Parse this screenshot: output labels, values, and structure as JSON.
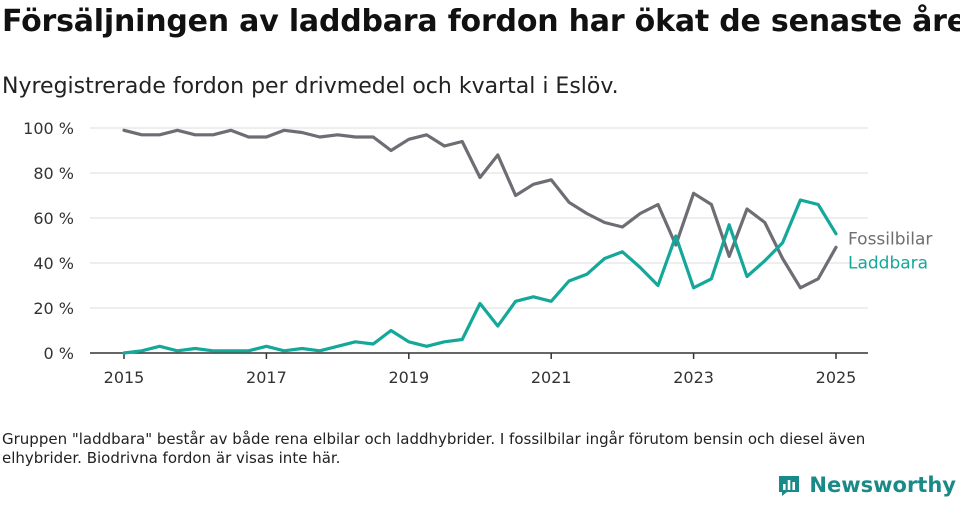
{
  "title": "Försäljningen av laddbara fordon har ökat de senaste åren",
  "subtitle": "Nyregistrerade fordon per drivmedel och kvartal i Eslöv.",
  "footnote": "Gruppen \"laddbara\" består av både rena elbilar och laddhybrider. I fossilbilar ingår förutom bensin och diesel även elhybrider. Biodrivna fordon är visas inte här.",
  "brand": "Newsworthy",
  "chart_data": {
    "type": "line",
    "x_start": "2015Q1",
    "x_step": "quarter",
    "xtick_labels": [
      "2015",
      "2017",
      "2019",
      "2021",
      "2023",
      "2025"
    ],
    "ytick_labels": [
      "0 %",
      "20 %",
      "40 %",
      "60 %",
      "80 %",
      "100 %"
    ],
    "yticks": [
      0,
      20,
      40,
      60,
      80,
      100
    ],
    "ylim": [
      0,
      100
    ],
    "grid": true,
    "legend": "right",
    "series": [
      {
        "name": "Fossilbilar",
        "color": "#6d6d73",
        "values": [
          99,
          97,
          97,
          99,
          97,
          97,
          99,
          96,
          96,
          99,
          98,
          96,
          97,
          96,
          96,
          90,
          95,
          97,
          92,
          94,
          78,
          88,
          70,
          75,
          77,
          67,
          62,
          58,
          56,
          62,
          66,
          48,
          71,
          66,
          43,
          64,
          58,
          42,
          29,
          33,
          47
        ]
      },
      {
        "name": "Laddbara",
        "color": "#14a89a",
        "values": [
          0,
          1,
          3,
          1,
          2,
          1,
          1,
          1,
          3,
          1,
          2,
          1,
          3,
          5,
          4,
          10,
          5,
          3,
          5,
          6,
          22,
          12,
          23,
          25,
          23,
          32,
          35,
          42,
          45,
          38,
          30,
          52,
          29,
          33,
          57,
          34,
          41,
          49,
          68,
          66,
          53
        ]
      }
    ]
  }
}
